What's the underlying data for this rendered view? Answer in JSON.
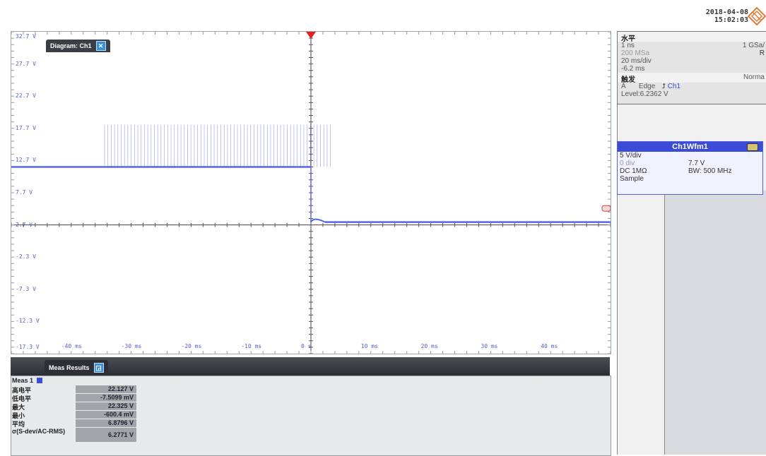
{
  "header": {
    "datetime_line1": "2018-04-08",
    "datetime_line2": "15:02:03"
  },
  "diagram": {
    "tab_label": "Diagram: Ch1",
    "tab_icon": "close-icon"
  },
  "plot": {
    "y_labels": [
      "32.7 V",
      "27.7 V",
      "22.7 V",
      "17.7 V",
      "12.7 V",
      "7.7 V",
      "2.7 V",
      "-2.3 V",
      "-7.3 V",
      "-12.3 V",
      "-17.3 V"
    ],
    "x_labels": [
      "-40 ms",
      "-30 ms",
      "-20 ms",
      "-10 ms",
      "0 s",
      "10 ms",
      "20 ms",
      "30 ms",
      "40 ms"
    ],
    "trace_color": "#5566e8",
    "trigger_marker_color": "#e02020"
  },
  "horizontal_panel": {
    "title": "水平",
    "resolution": "1 ns",
    "sample_rate_right": "1 GSa/",
    "record_length": "200 MSa",
    "right_letter": "R",
    "time_scale": "20 ms/div",
    "offset": "-6.2 ms",
    "trigger_title": "触发",
    "trigger_mode": "Norma",
    "trigger_source_prefix": "A",
    "trigger_type": "Edge",
    "trigger_channel": "Ch1",
    "trigger_level": "Level:6.2362 V"
  },
  "channel_panel": {
    "title": "Ch1Wfm1",
    "scale": "5 V/div",
    "offset_label": "0 div",
    "offset_value": "7.7 V",
    "coupling": "DC 1MΩ",
    "bandwidth": "BW: 500 MHz",
    "acquisition": "Sample"
  },
  "measure": {
    "tab_label": "Meas Results",
    "group_name": "Meas 1",
    "rows": [
      {
        "label": "高电平",
        "value": "22.127 V"
      },
      {
        "label": "低电平",
        "value": "-7.5099 mV"
      },
      {
        "label": "最大",
        "value": "22.325 V"
      },
      {
        "label": "最小",
        "value": "-600.4 mV"
      },
      {
        "label": "平均",
        "value": "6.8796 V"
      },
      {
        "label": "σ(S-dev/AC-RMS)",
        "value": "6.2771 V"
      }
    ]
  }
}
